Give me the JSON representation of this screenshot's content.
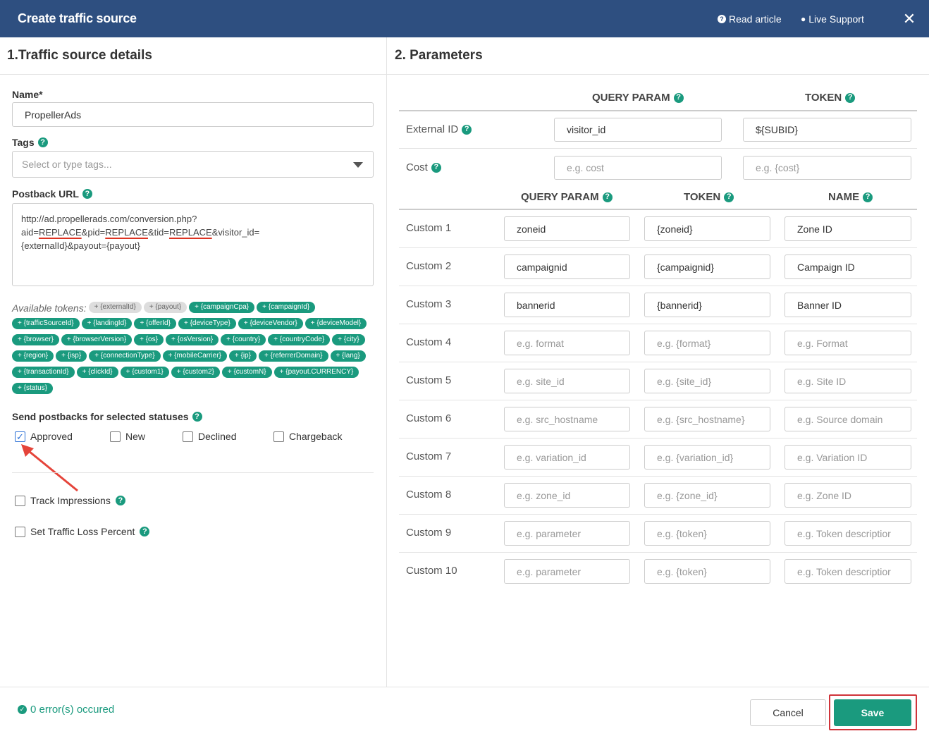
{
  "header": {
    "title": "Create traffic source",
    "read_article": "Read article",
    "live_support": "Live Support",
    "close": "✕"
  },
  "left": {
    "section_title": "1.Traffic source details",
    "name_label": "Name*",
    "name_value": "PropellerAds",
    "tags_label": "Tags",
    "tags_placeholder": "Select or type tags...",
    "postback_label": "Postback URL",
    "postback": {
      "line1": "http://ad.propellerads.com/conversion.php?",
      "p_aid": "aid=",
      "replace1": "REPLACE",
      "p_pid": "&pid=",
      "replace2": "REPLACE",
      "p_tid": "&tid=",
      "replace3": "REPLACE",
      "p_rest": "&visitor_id=",
      "line3": "{externalId}&payout={payout}"
    },
    "available_tokens_label": "Available tokens:",
    "tokens_grey": [
      "+ {externalId}",
      "+ {payout}"
    ],
    "tokens": [
      "+ {campaignCpa}",
      "+ {campaignId}",
      "+ {trafficSourceId}",
      "+ {landingId}",
      "+ {offerId}",
      "+ {deviceType}",
      "+ {deviceVendor}",
      "+ {deviceModel}",
      "+ {browser}",
      "+ {browserVersion}",
      "+ {os}",
      "+ {osVersion}",
      "+ {country}",
      "+ {countryCode}",
      "+ {city}",
      "+ {region}",
      "+ {isp}",
      "+ {connectionType}",
      "+ {mobileCarrier}",
      "+ {ip}",
      "+ {referrerDomain}",
      "+ {lang}",
      "+ {transactionId}",
      "+ {clickId}",
      "+ {custom1}",
      "+ {custom2}",
      "+ {customN}",
      "+ {payout.CURRENCY}",
      "+ {status}"
    ],
    "statuses_label": "Send postbacks for selected statuses",
    "statuses": [
      {
        "label": "Approved",
        "checked": true
      },
      {
        "label": "New",
        "checked": false
      },
      {
        "label": "Declined",
        "checked": false
      },
      {
        "label": "Chargeback",
        "checked": false
      }
    ],
    "track_impressions": "Track Impressions",
    "traffic_loss": "Set Traffic Loss Percent"
  },
  "right": {
    "section_title": "2. Parameters",
    "query_param": "QUERY PARAM",
    "token": "TOKEN",
    "name": "NAME",
    "external_id": {
      "label": "External ID",
      "query": "visitor_id",
      "token": "${SUBID}"
    },
    "cost": {
      "label": "Cost",
      "query_ph": "e.g. cost",
      "token_ph": "e.g. {cost}"
    },
    "customs": [
      {
        "label": "Custom 1",
        "query": "zoneid",
        "token": "{zoneid}",
        "name": "Zone ID",
        "filled": true
      },
      {
        "label": "Custom 2",
        "query": "campaignid",
        "token": "{campaignid}",
        "name": "Campaign ID",
        "filled": true
      },
      {
        "label": "Custom 3",
        "query": "bannerid",
        "token": "{bannerid}",
        "name": "Banner ID",
        "filled": true
      },
      {
        "label": "Custom 4",
        "query": "e.g. format",
        "token": "e.g. {format}",
        "name": "e.g. Format",
        "filled": false
      },
      {
        "label": "Custom 5",
        "query": "e.g. site_id",
        "token": "e.g. {site_id}",
        "name": "e.g. Site ID",
        "filled": false
      },
      {
        "label": "Custom 6",
        "query": "e.g. src_hostname",
        "token": "e.g. {src_hostname}",
        "name": "e.g. Source domain",
        "filled": false
      },
      {
        "label": "Custom 7",
        "query": "e.g. variation_id",
        "token": "e.g. {variation_id}",
        "name": "e.g. Variation ID",
        "filled": false
      },
      {
        "label": "Custom 8",
        "query": "e.g. zone_id",
        "token": "e.g. {zone_id}",
        "name": "e.g. Zone ID",
        "filled": false
      },
      {
        "label": "Custom 9",
        "query": "e.g. parameter",
        "token": "e.g. {token}",
        "name": "e.g. Token descriptior",
        "filled": false
      },
      {
        "label": "Custom 10",
        "query": "e.g. parameter",
        "token": "e.g. {token}",
        "name": "e.g. Token descriptior",
        "filled": false
      }
    ]
  },
  "footer": {
    "status": "0 error(s) occured",
    "cancel": "Cancel",
    "save": "Save"
  }
}
